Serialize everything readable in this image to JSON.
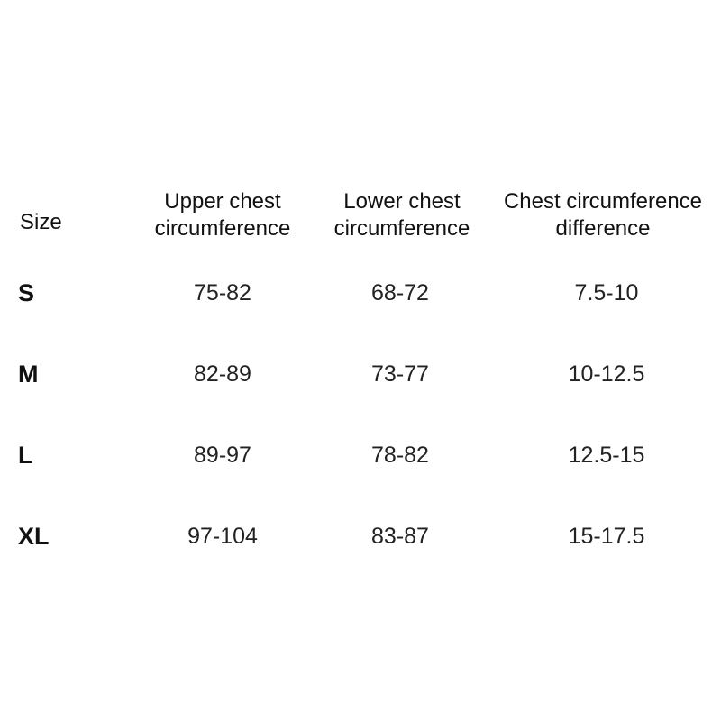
{
  "headers": [
    "Size",
    "Upper chest circumference",
    "Lower chest circumference",
    "Chest circumference difference"
  ],
  "rows": [
    [
      "S",
      "75-82",
      "68-72",
      "7.5-10"
    ],
    [
      "M",
      "82-89",
      "73-77",
      "10-12.5"
    ],
    [
      "L",
      "89-97",
      "78-82",
      "12.5-15"
    ],
    [
      "XL",
      "97-104",
      "83-87",
      "15-17.5"
    ]
  ]
}
